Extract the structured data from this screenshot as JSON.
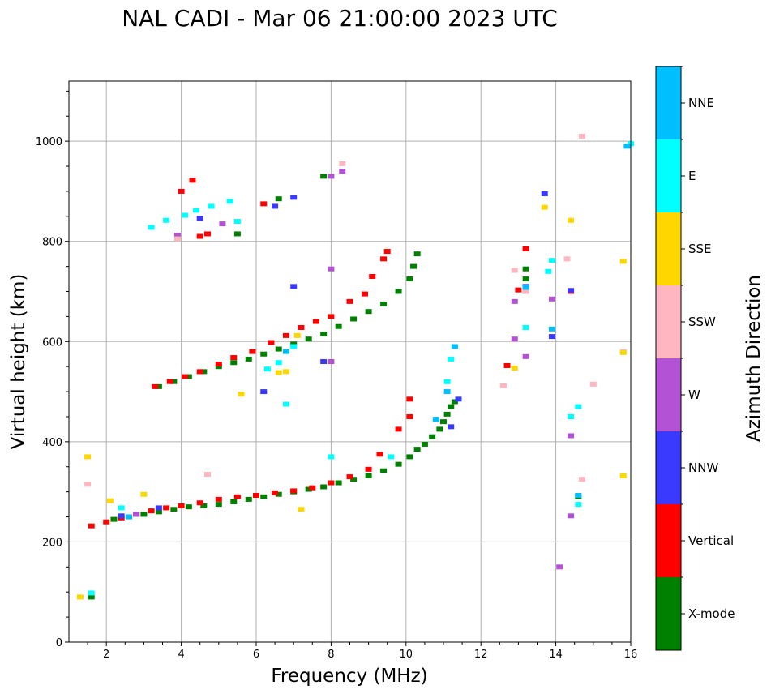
{
  "chart_data": {
    "type": "scatter",
    "title": "NAL CADI - Mar 06 21:00:00 2023 UTC",
    "xlabel": "Frequency (MHz)",
    "ylabel": "Virtual height (km)",
    "xlim": [
      1,
      16
    ],
    "ylim": [
      0,
      1120
    ],
    "xticks": [
      2,
      4,
      6,
      8,
      10,
      12,
      14,
      16
    ],
    "yticks": [
      0,
      200,
      400,
      600,
      800,
      1000
    ],
    "grid": true,
    "colorbar": {
      "label": "Azimuth Direction",
      "categories": [
        {
          "name": "X-mode",
          "color": "#008000"
        },
        {
          "name": "Vertical",
          "color": "#ff0000"
        },
        {
          "name": "NNW",
          "color": "#3a3aff"
        },
        {
          "name": "W",
          "color": "#b452d6"
        },
        {
          "name": "SSW",
          "color": "#ffb6c1"
        },
        {
          "name": "SSE",
          "color": "#ffd700"
        },
        {
          "name": "E",
          "color": "#00ffff"
        },
        {
          "name": "NNE",
          "color": "#00bfff"
        }
      ]
    },
    "series": [
      {
        "name": "X-mode",
        "points": [
          [
            1.6,
            90
          ],
          [
            2.2,
            245
          ],
          [
            2.6,
            250
          ],
          [
            3.0,
            255
          ],
          [
            3.4,
            260
          ],
          [
            3.8,
            265
          ],
          [
            4.2,
            270
          ],
          [
            4.6,
            272
          ],
          [
            5.0,
            275
          ],
          [
            5.4,
            280
          ],
          [
            5.8,
            285
          ],
          [
            6.2,
            290
          ],
          [
            6.6,
            295
          ],
          [
            7.0,
            300
          ],
          [
            7.4,
            305
          ],
          [
            7.8,
            310
          ],
          [
            8.2,
            318
          ],
          [
            8.6,
            325
          ],
          [
            9.0,
            332
          ],
          [
            9.4,
            342
          ],
          [
            9.8,
            355
          ],
          [
            10.1,
            370
          ],
          [
            10.3,
            385
          ],
          [
            10.5,
            395
          ],
          [
            10.7,
            410
          ],
          [
            10.9,
            425
          ],
          [
            11.0,
            440
          ],
          [
            11.1,
            455
          ],
          [
            11.2,
            470
          ],
          [
            11.3,
            480
          ],
          [
            3.4,
            510
          ],
          [
            3.8,
            520
          ],
          [
            4.2,
            530
          ],
          [
            4.6,
            540
          ],
          [
            5.0,
            550
          ],
          [
            5.4,
            558
          ],
          [
            5.8,
            565
          ],
          [
            6.2,
            575
          ],
          [
            6.6,
            585
          ],
          [
            7.0,
            595
          ],
          [
            7.4,
            605
          ],
          [
            7.8,
            615
          ],
          [
            8.2,
            630
          ],
          [
            8.6,
            645
          ],
          [
            9.0,
            660
          ],
          [
            9.4,
            675
          ],
          [
            9.8,
            700
          ],
          [
            10.1,
            725
          ],
          [
            10.2,
            750
          ],
          [
            10.3,
            775
          ],
          [
            6.6,
            885
          ],
          [
            7.8,
            930
          ],
          [
            5.5,
            815
          ],
          [
            13.2,
            745
          ],
          [
            13.2,
            725
          ],
          [
            14.6,
            290
          ]
        ]
      },
      {
        "name": "Vertical",
        "points": [
          [
            1.6,
            232
          ],
          [
            2.0,
            240
          ],
          [
            2.4,
            248
          ],
          [
            2.8,
            255
          ],
          [
            3.2,
            262
          ],
          [
            3.6,
            268
          ],
          [
            4.0,
            272
          ],
          [
            4.5,
            278
          ],
          [
            5.0,
            285
          ],
          [
            5.5,
            290
          ],
          [
            6.0,
            293
          ],
          [
            6.5,
            298
          ],
          [
            7.0,
            302
          ],
          [
            7.5,
            308
          ],
          [
            8.0,
            318
          ],
          [
            8.5,
            330
          ],
          [
            9.0,
            345
          ],
          [
            9.3,
            375
          ],
          [
            9.8,
            425
          ],
          [
            10.1,
            450
          ],
          [
            10.1,
            485
          ],
          [
            3.3,
            510
          ],
          [
            3.7,
            520
          ],
          [
            4.1,
            530
          ],
          [
            4.5,
            540
          ],
          [
            5.0,
            555
          ],
          [
            5.4,
            568
          ],
          [
            5.9,
            580
          ],
          [
            6.4,
            598
          ],
          [
            6.8,
            612
          ],
          [
            7.2,
            628
          ],
          [
            7.6,
            640
          ],
          [
            8.0,
            650
          ],
          [
            8.5,
            680
          ],
          [
            8.9,
            695
          ],
          [
            9.1,
            730
          ],
          [
            9.4,
            765
          ],
          [
            9.5,
            780
          ],
          [
            4.0,
            900
          ],
          [
            4.3,
            922
          ],
          [
            4.5,
            810
          ],
          [
            4.7,
            815
          ],
          [
            6.2,
            875
          ],
          [
            12.7,
            552
          ],
          [
            13.0,
            703
          ],
          [
            13.2,
            700
          ],
          [
            13.2,
            785
          ],
          [
            14.4,
            700
          ]
        ]
      },
      {
        "name": "NNW",
        "points": [
          [
            2.4,
            252
          ],
          [
            3.4,
            268
          ],
          [
            6.2,
            500
          ],
          [
            7.0,
            888
          ],
          [
            7.0,
            710
          ],
          [
            7.8,
            560
          ],
          [
            11.4,
            485
          ],
          [
            11.2,
            430
          ],
          [
            13.2,
            710
          ],
          [
            13.7,
            895
          ],
          [
            13.9,
            610
          ],
          [
            14.4,
            702
          ],
          [
            4.5,
            846
          ],
          [
            6.5,
            870
          ]
        ]
      },
      {
        "name": "W",
        "points": [
          [
            2.8,
            255
          ],
          [
            3.9,
            812
          ],
          [
            5.1,
            835
          ],
          [
            8.0,
            745
          ],
          [
            8.0,
            560
          ],
          [
            8.3,
            940
          ],
          [
            8.0,
            930
          ],
          [
            12.9,
            680
          ],
          [
            12.9,
            605
          ],
          [
            13.2,
            570
          ],
          [
            13.9,
            685
          ],
          [
            14.4,
            412
          ],
          [
            14.4,
            252
          ],
          [
            14.1,
            150
          ]
        ]
      },
      {
        "name": "SSW",
        "points": [
          [
            1.5,
            315
          ],
          [
            3.9,
            805
          ],
          [
            4.7,
            335
          ],
          [
            8.3,
            955
          ],
          [
            12.6,
            512
          ],
          [
            12.9,
            742
          ],
          [
            13.2,
            700
          ],
          [
            14.3,
            765
          ],
          [
            14.7,
            1010
          ],
          [
            14.7,
            325
          ],
          [
            15.0,
            515
          ],
          [
            15.8,
            580
          ]
        ]
      },
      {
        "name": "SSE",
        "points": [
          [
            1.5,
            370
          ],
          [
            1.3,
            90
          ],
          [
            2.1,
            282
          ],
          [
            3.0,
            295
          ],
          [
            5.6,
            495
          ],
          [
            6.6,
            538
          ],
          [
            6.8,
            540
          ],
          [
            7.1,
            612
          ],
          [
            7.2,
            265
          ],
          [
            12.9,
            547
          ],
          [
            13.7,
            868
          ],
          [
            14.4,
            842
          ],
          [
            15.8,
            760
          ],
          [
            15.8,
            332
          ],
          [
            15.8,
            578
          ]
        ]
      },
      {
        "name": "E",
        "points": [
          [
            1.6,
            98
          ],
          [
            2.4,
            268
          ],
          [
            3.2,
            828
          ],
          [
            3.6,
            842
          ],
          [
            4.1,
            852
          ],
          [
            4.4,
            862
          ],
          [
            4.8,
            870
          ],
          [
            5.3,
            880
          ],
          [
            5.5,
            840
          ],
          [
            6.3,
            545
          ],
          [
            6.6,
            558
          ],
          [
            6.8,
            475
          ],
          [
            7.0,
            590
          ],
          [
            8.0,
            370
          ],
          [
            9.6,
            370
          ],
          [
            11.2,
            565
          ],
          [
            11.1,
            520
          ],
          [
            13.2,
            628
          ],
          [
            13.8,
            740
          ],
          [
            13.9,
            762
          ],
          [
            14.4,
            450
          ],
          [
            14.6,
            470
          ],
          [
            14.6,
            275
          ],
          [
            16.0,
            995
          ]
        ]
      },
      {
        "name": "NNE",
        "points": [
          [
            2.6,
            250
          ],
          [
            6.8,
            580
          ],
          [
            10.8,
            445
          ],
          [
            11.1,
            500
          ],
          [
            11.3,
            590
          ],
          [
            13.2,
            708
          ],
          [
            13.9,
            625
          ],
          [
            14.6,
            293
          ],
          [
            15.9,
            990
          ]
        ]
      }
    ]
  }
}
